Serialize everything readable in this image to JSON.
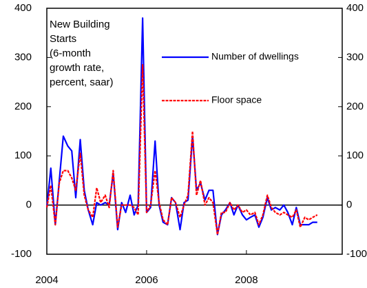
{
  "chart_data": {
    "type": "line",
    "annotation": [
      "New Building",
      "Starts",
      "(6-month",
      "growth rate,",
      "percent, saar)"
    ],
    "x": [
      2004,
      2004.08,
      2004.17,
      2004.25,
      2004.33,
      2004.42,
      2004.5,
      2004.58,
      2004.67,
      2004.75,
      2004.83,
      2004.92,
      2005,
      2005.08,
      2005.17,
      2005.25,
      2005.33,
      2005.42,
      2005.5,
      2005.58,
      2005.67,
      2005.75,
      2005.83,
      2005.92,
      2006,
      2006.08,
      2006.17,
      2006.25,
      2006.33,
      2006.42,
      2006.5,
      2006.58,
      2006.67,
      2006.75,
      2006.83,
      2006.92,
      2007,
      2007.08,
      2007.17,
      2007.25,
      2007.33,
      2007.42,
      2007.5,
      2007.58,
      2007.67,
      2007.75,
      2007.83,
      2007.92,
      2008,
      2008.08,
      2008.17,
      2008.25,
      2008.33,
      2008.42,
      2008.5,
      2008.58,
      2008.67,
      2008.75,
      2008.83,
      2008.92,
      2009,
      2009.08,
      2009.17,
      2009.25,
      2009.33,
      2009.42
    ],
    "series": [
      {
        "name": "Number of dwellings",
        "color": "#0000ff",
        "dashed": false,
        "values": [
          -5,
          75,
          -40,
          50,
          140,
          120,
          110,
          15,
          133,
          30,
          -10,
          -40,
          5,
          0,
          5,
          0,
          65,
          -50,
          5,
          -15,
          20,
          -20,
          0,
          380,
          -15,
          -5,
          130,
          0,
          -35,
          -40,
          15,
          5,
          -50,
          5,
          10,
          140,
          30,
          45,
          10,
          30,
          30,
          -60,
          -20,
          -10,
          5,
          -20,
          0,
          -20,
          -30,
          -25,
          -20,
          -45,
          -25,
          15,
          -10,
          -5,
          -10,
          0,
          -15,
          -40,
          -5,
          -40,
          -40,
          -40,
          -35,
          -35
        ]
      },
      {
        "name": "Floor space",
        "color": "#ff0000",
        "dashed": true,
        "values": [
          -5,
          40,
          -40,
          45,
          70,
          70,
          55,
          30,
          105,
          20,
          -10,
          -25,
          35,
          5,
          20,
          -5,
          70,
          -45,
          0,
          0,
          0,
          -5,
          -20,
          285,
          -15,
          0,
          70,
          5,
          -30,
          -40,
          15,
          5,
          -25,
          0,
          20,
          150,
          20,
          50,
          0,
          15,
          5,
          -60,
          -15,
          -15,
          5,
          -10,
          0,
          -15,
          -10,
          -20,
          -15,
          -40,
          -20,
          20,
          -5,
          -15,
          -20,
          -15,
          -20,
          -25,
          -10,
          -45,
          -25,
          -30,
          -25,
          -20
        ]
      }
    ],
    "xlim": [
      2004,
      2009.92
    ],
    "xticks": [
      2004,
      2006,
      2008
    ],
    "ylim": [
      -100,
      400
    ],
    "yticks": [
      -100,
      0,
      100,
      200,
      300,
      400
    ],
    "y2lim": [
      -100,
      400
    ],
    "y2ticks": [
      -100,
      0,
      100,
      200,
      300,
      400
    ],
    "grid": false
  }
}
